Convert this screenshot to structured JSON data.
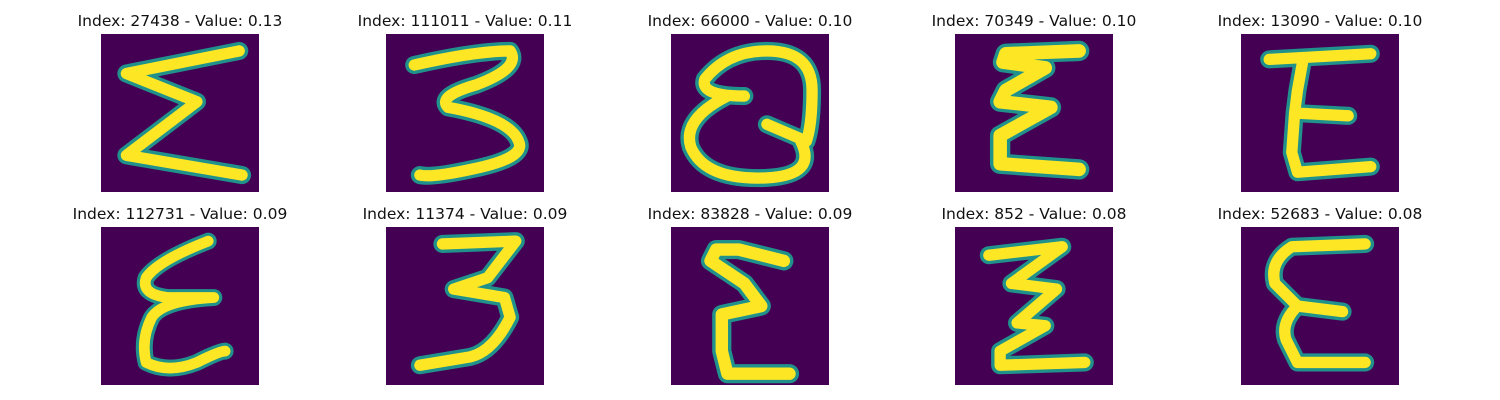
{
  "figure": {
    "colormap": {
      "background": "#440154",
      "mid": "#21918c",
      "stroke": "#fde725"
    },
    "panels": [
      {
        "title": "Index: 27438 - Value: 0.13",
        "index": 27438,
        "value": 0.13,
        "glyph": "sigma-like E"
      },
      {
        "title": "Index: 111011 - Value: 0.11",
        "index": 111011,
        "value": 0.11,
        "glyph": "3"
      },
      {
        "title": "Index: 66000 - Value: 0.10",
        "index": 66000,
        "value": 0.1,
        "glyph": "looped Q-like mark"
      },
      {
        "title": "Index: 70349 - Value: 0.10",
        "index": 70349,
        "value": 0.1,
        "glyph": "E"
      },
      {
        "title": "Index: 13090 - Value: 0.10",
        "index": 13090,
        "value": 0.1,
        "glyph": "E"
      },
      {
        "title": "Index: 112731 - Value: 0.09",
        "index": 112731,
        "value": 0.09,
        "glyph": "script E"
      },
      {
        "title": "Index: 11374 - Value: 0.09",
        "index": 11374,
        "value": 0.09,
        "glyph": "3"
      },
      {
        "title": "Index: 83828 - Value: 0.09",
        "index": 83828,
        "value": 0.09,
        "glyph": "E"
      },
      {
        "title": "Index: 852 - Value: 0.08",
        "index": 852,
        "value": 0.08,
        "glyph": "zig-zag E"
      },
      {
        "title": "Index: 52683 - Value: 0.08",
        "index": 52683,
        "value": 0.08,
        "glyph": "E"
      }
    ]
  }
}
